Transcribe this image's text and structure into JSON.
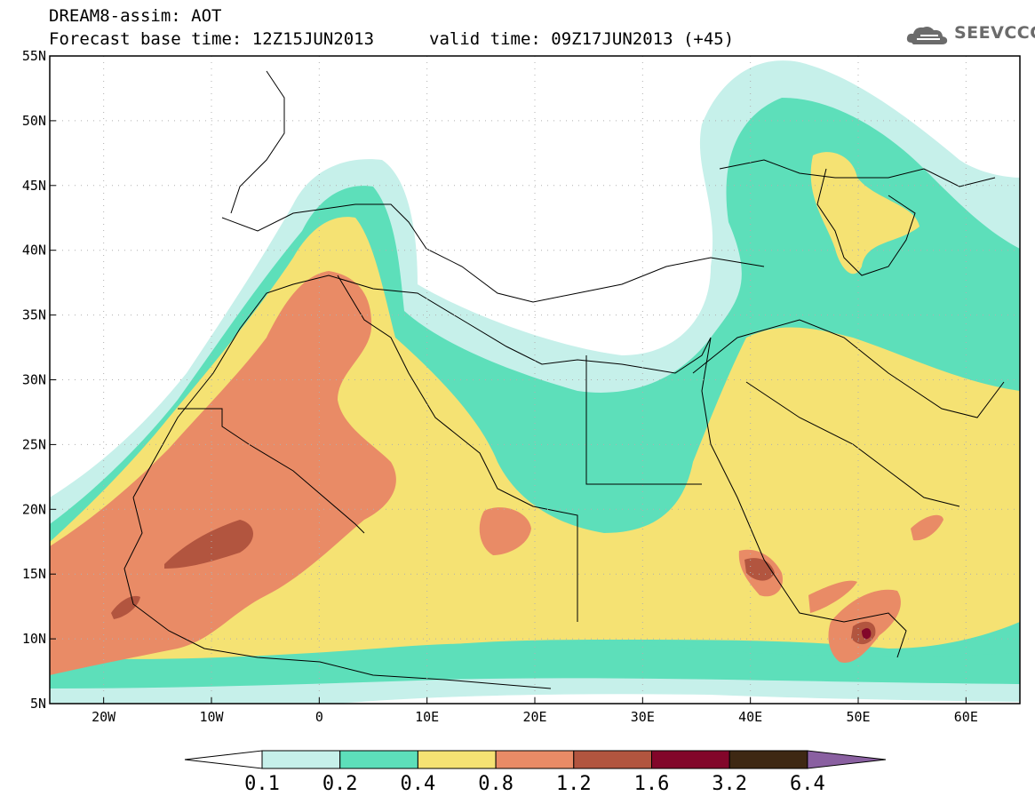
{
  "header": {
    "title_line1": "DREAM8-assim: AOT",
    "title_line2": "Forecast base time: 12Z15JUN2013",
    "valid_time": "valid time: 09Z17JUN2013 (+45)",
    "logo_text": "SEEVCCC"
  },
  "map_axes": {
    "lat_labels": [
      "55N",
      "50N",
      "45N",
      "40N",
      "35N",
      "30N",
      "25N",
      "20N",
      "15N",
      "10N",
      "5N"
    ],
    "lon_labels": [
      "20W",
      "10W",
      "0",
      "10E",
      "20E",
      "30E",
      "40E",
      "50E",
      "60E"
    ],
    "lat_range": [
      5,
      55
    ],
    "lon_range": [
      -25,
      65
    ],
    "grid": "dotted"
  },
  "colorbar": {
    "ticks": [
      "0.1",
      "0.2",
      "0.4",
      "0.8",
      "1.2",
      "1.6",
      "3.2",
      "6.4"
    ],
    "colors": [
      "#c6f0ea",
      "#5ddfba",
      "#f5e273",
      "#e98b66",
      "#b2553f",
      "#82062a",
      "#3e2813",
      "#8a60a1"
    ],
    "lower_extend_color": "#ffffff"
  },
  "colors": {
    "aot_0_1": "#c6f0ea",
    "aot_0_2": "#5ddfba",
    "aot_0_4": "#f5e273",
    "aot_0_8": "#e98b66",
    "aot_1_2": "#b2553f",
    "aot_1_6": "#82062a"
  }
}
